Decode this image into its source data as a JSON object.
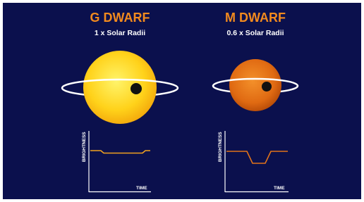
{
  "panels": [
    {
      "title": "G DWARF",
      "subtitle": "1 x Solar Radii",
      "y_label": "BRIGHTNESS",
      "x_label": "TIME"
    },
    {
      "title": "M DWARF",
      "subtitle": "0.6 x Solar Radii",
      "y_label": "BRIGHTNESS",
      "x_label": "TIME"
    }
  ]
}
